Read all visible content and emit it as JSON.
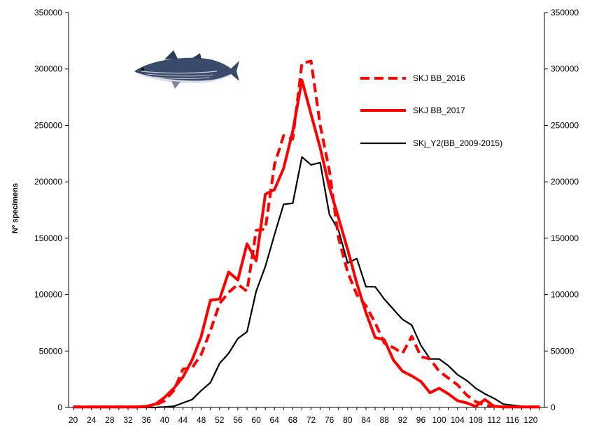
{
  "chart_data": {
    "type": "line",
    "title": "",
    "xlabel": "",
    "ylabel": "Nº specimens",
    "ylim": [
      0,
      350000
    ],
    "yticks": [
      0,
      50000,
      100000,
      150000,
      200000,
      250000,
      300000,
      350000
    ],
    "xticks": [
      "20",
      "24",
      "28",
      "32",
      "36",
      "40",
      "44",
      "48",
      "52",
      "56",
      "60",
      "64",
      "68",
      "72",
      "76",
      "80",
      "84",
      "88",
      "92",
      "96",
      "100",
      "104",
      "108",
      "112",
      "116",
      "120"
    ],
    "x": [
      20,
      22,
      24,
      26,
      28,
      30,
      32,
      34,
      36,
      38,
      40,
      42,
      44,
      46,
      48,
      50,
      52,
      54,
      56,
      58,
      60,
      62,
      64,
      66,
      68,
      70,
      72,
      74,
      76,
      78,
      80,
      82,
      84,
      86,
      88,
      90,
      92,
      94,
      96,
      98,
      100,
      102,
      104,
      106,
      108,
      110,
      112,
      114,
      116,
      118,
      120,
      122
    ],
    "legend_position": "top-right",
    "grid": false,
    "secondary_y_axis": true,
    "series": [
      {
        "name": "SKJ BB_2016",
        "color": "#ff0000",
        "style": "dashed",
        "values": [
          500,
          500,
          500,
          500,
          500,
          500,
          500,
          500,
          1000,
          2000,
          6000,
          15000,
          34000,
          35000,
          47000,
          68000,
          92000,
          102000,
          109000,
          103000,
          157000,
          158000,
          215000,
          241000,
          238000,
          305000,
          307000,
          250000,
          210000,
          150000,
          120000,
          100000,
          90000,
          75000,
          57000,
          53000,
          48000,
          63000,
          45000,
          43000,
          32000,
          26000,
          20000,
          11000,
          5000,
          2000,
          1000,
          500,
          500,
          500,
          500,
          500
        ]
      },
      {
        "name": "SKJ BB_2017",
        "color": "#ff0000",
        "style": "solid",
        "values": [
          500,
          500,
          500,
          500,
          500,
          500,
          500,
          500,
          1000,
          3000,
          9000,
          17000,
          27000,
          42000,
          63000,
          95000,
          96000,
          120000,
          113000,
          145000,
          130000,
          189000,
          193000,
          212000,
          245000,
          290000,
          260000,
          230000,
          195000,
          168000,
          140000,
          110000,
          84000,
          62000,
          60000,
          42000,
          32000,
          28000,
          23000,
          13000,
          17000,
          12000,
          6000,
          4000,
          1000,
          7000,
          1000,
          500,
          500,
          500,
          500,
          500
        ]
      },
      {
        "name": "SKj_Y2(BB_2009-2015)",
        "color": "#000000",
        "style": "solid",
        "values": [
          0,
          0,
          0,
          0,
          0,
          0,
          0,
          0,
          0,
          0,
          500,
          1000,
          4000,
          7000,
          15000,
          22000,
          39000,
          48000,
          61000,
          67000,
          103000,
          125000,
          153000,
          180000,
          181000,
          222000,
          215000,
          217000,
          171000,
          157000,
          128000,
          132000,
          107000,
          107000,
          96000,
          87000,
          78000,
          73000,
          55000,
          43000,
          43000,
          37000,
          29000,
          24000,
          17000,
          12000,
          8000,
          3000,
          2000,
          1000,
          500,
          0
        ]
      }
    ]
  },
  "fish_image": "skipjack-tuna-illustration"
}
